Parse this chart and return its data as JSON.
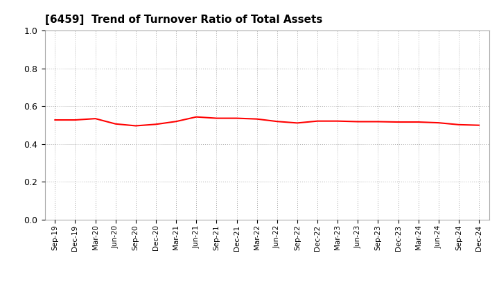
{
  "title": "[6459]  Trend of Turnover Ratio of Total Assets",
  "title_fontsize": 11,
  "line_color": "#FF0000",
  "line_width": 1.5,
  "background_color": "#FFFFFF",
  "grid_color": "#AAAAAA",
  "ylim": [
    0.0,
    1.0
  ],
  "yticks": [
    0.0,
    0.2,
    0.4,
    0.6,
    0.8,
    1.0
  ],
  "labels": [
    "Sep-19",
    "Dec-19",
    "Mar-20",
    "Jun-20",
    "Sep-20",
    "Dec-20",
    "Mar-21",
    "Jun-21",
    "Sep-21",
    "Dec-21",
    "Mar-22",
    "Jun-22",
    "Sep-22",
    "Dec-22",
    "Mar-23",
    "Jun-23",
    "Sep-23",
    "Dec-23",
    "Mar-24",
    "Jun-24",
    "Sep-24",
    "Dec-24"
  ],
  "values": [
    0.527,
    0.527,
    0.534,
    0.506,
    0.496,
    0.504,
    0.519,
    0.543,
    0.536,
    0.536,
    0.532,
    0.519,
    0.511,
    0.521,
    0.521,
    0.518,
    0.518,
    0.516,
    0.516,
    0.512,
    0.502,
    0.499
  ]
}
